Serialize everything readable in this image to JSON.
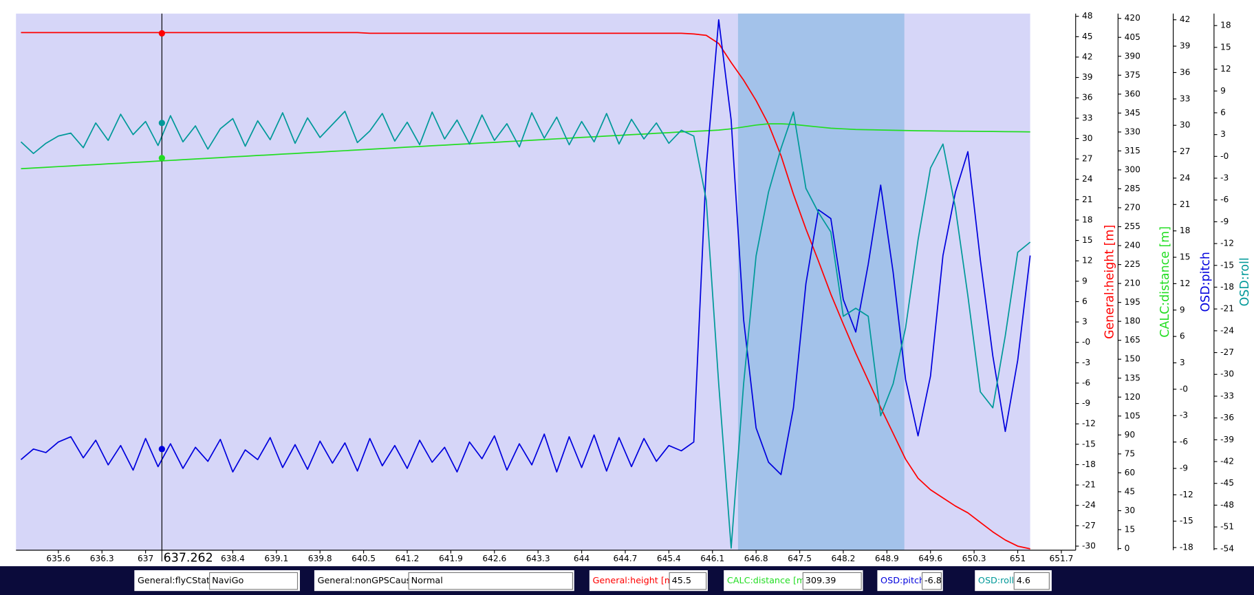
{
  "chart_data": {
    "type": "line",
    "xlim": [
      634.92,
      651.93
    ],
    "xticks": [
      635.6,
      636.3,
      637,
      638.4,
      639.1,
      639.8,
      640.5,
      641.2,
      641.9,
      642.6,
      643.3,
      644,
      644.7,
      645.4,
      646.1,
      646.8,
      647.5,
      648.2,
      648.9,
      649.6,
      650.3,
      651,
      651.7
    ],
    "cursor": 637.262,
    "highlight": [
      646.51,
      649.18
    ],
    "x": [
      635,
      635.2,
      635.4,
      635.6,
      635.8,
      636,
      636.2,
      636.4,
      636.6,
      636.8,
      637,
      637.2,
      637.4,
      637.6,
      637.8,
      638,
      638.2,
      638.4,
      638.6,
      638.8,
      639,
      639.2,
      639.4,
      639.6,
      639.8,
      640,
      640.2,
      640.4,
      640.6,
      640.8,
      641,
      641.2,
      641.4,
      641.6,
      641.8,
      642,
      642.2,
      642.4,
      642.6,
      642.8,
      643,
      643.2,
      643.4,
      643.6,
      643.8,
      644,
      644.2,
      644.4,
      644.6,
      644.8,
      645,
      645.2,
      645.4,
      645.6,
      645.8,
      646,
      646.2,
      646.4,
      646.6,
      646.8,
      647,
      647.2,
      647.4,
      647.6,
      647.8,
      648,
      648.2,
      648.4,
      648.6,
      648.8,
      649,
      649.2,
      649.4,
      649.6,
      649.8,
      650,
      650.2,
      650.4,
      650.6,
      650.8,
      651,
      651.2
    ],
    "series": [
      {
        "name": "General:height [m]",
        "color": "#ff0000",
        "cursor_value": 45.5,
        "ylim": [
          -30.6,
          48.4
        ],
        "yticks": [
          -30,
          -27,
          -24,
          -21,
          -18,
          -15,
          -12,
          -9,
          -6,
          -3,
          {
            "value": 0,
            "label": "-0"
          },
          3,
          6,
          9,
          12,
          15,
          18,
          21,
          24,
          27,
          30,
          33,
          36,
          39,
          42,
          45,
          48
        ],
        "values": [
          45.6,
          45.6,
          45.6,
          45.6,
          45.6,
          45.6,
          45.6,
          45.6,
          45.6,
          45.6,
          45.6,
          45.6,
          45.6,
          45.6,
          45.6,
          45.6,
          45.6,
          45.6,
          45.6,
          45.6,
          45.6,
          45.6,
          45.6,
          45.6,
          45.6,
          45.6,
          45.6,
          45.6,
          45.5,
          45.5,
          45.5,
          45.5,
          45.5,
          45.5,
          45.5,
          45.5,
          45.5,
          45.5,
          45.5,
          45.5,
          45.5,
          45.5,
          45.5,
          45.5,
          45.5,
          45.5,
          45.5,
          45.5,
          45.5,
          45.5,
          45.5,
          45.5,
          45.5,
          45.5,
          45.4,
          45.2,
          44.0,
          41.2,
          38.6,
          35.6,
          32.1,
          27.5,
          21.8,
          16.7,
          12.0,
          7.1,
          2.7,
          -1.6,
          -5.6,
          -9.6,
          -13.4,
          -17.2,
          -20.0,
          -21.7,
          -22.9,
          -24.1,
          -25.1,
          -26.5,
          -27.9,
          -29.1,
          -30.0,
          -30.4
        ]
      },
      {
        "name": "CALC:distance [m]",
        "color": "#22dd22",
        "cursor_value": 309.39,
        "ylim": [
          -1.3,
          423.8
        ],
        "yticks": [
          0,
          15,
          30,
          45,
          60,
          75,
          90,
          105,
          120,
          135,
          150,
          165,
          180,
          195,
          210,
          225,
          240,
          255,
          270,
          285,
          300,
          315,
          330,
          345,
          360,
          375,
          390,
          405,
          420
        ],
        "values": [
          300.9,
          301.5,
          302.0,
          302.6,
          303.1,
          303.7,
          304.2,
          304.8,
          305.3,
          305.9,
          306.4,
          307.0,
          307.5,
          308.1,
          308.6,
          309.2,
          309.7,
          310.3,
          310.8,
          311.4,
          311.9,
          312.5,
          313.0,
          313.6,
          314.1,
          314.7,
          315.2,
          315.8,
          316.3,
          316.9,
          317.4,
          318.0,
          318.5,
          319.1,
          319.6,
          320.2,
          320.7,
          321.3,
          321.8,
          322.4,
          322.9,
          323.5,
          324.0,
          324.6,
          325.1,
          325.7,
          326.2,
          326.8,
          327.3,
          327.9,
          328.4,
          329.0,
          329.5,
          330.1,
          330.5,
          331.0,
          331.5,
          332.5,
          334.0,
          335.5,
          336.5,
          336.5,
          336.0,
          335.0,
          334.0,
          333.0,
          332.5,
          332.0,
          331.8,
          331.6,
          331.4,
          331.2,
          331.0,
          330.9,
          330.8,
          330.7,
          330.6,
          330.5,
          330.4,
          330.3,
          330.2,
          330.1
        ]
      },
      {
        "name": "OSD:pitch",
        "color": "#0000dd",
        "cursor_value": -6.8,
        "ylim": [
          -18.3,
          42.7
        ],
        "yticks": [
          -18,
          -15,
          -12,
          -9,
          -6,
          -3,
          {
            "value": 0,
            "label": "-0"
          },
          3,
          6,
          9,
          12,
          15,
          18,
          21,
          24,
          27,
          30,
          33,
          36,
          39,
          42
        ],
        "values": [
          -8.0,
          -6.8,
          -7.2,
          -6.0,
          -5.4,
          -7.8,
          -5.8,
          -8.6,
          -6.4,
          -9.2,
          -5.6,
          -8.8,
          -6.2,
          -9.0,
          -6.6,
          -8.2,
          -5.7,
          -9.4,
          -6.9,
          -8.0,
          -5.5,
          -8.9,
          -6.3,
          -9.1,
          -5.9,
          -8.4,
          -6.1,
          -9.3,
          -5.6,
          -8.7,
          -6.4,
          -9.0,
          -5.8,
          -8.3,
          -6.6,
          -9.4,
          -6.0,
          -7.9,
          -5.3,
          -9.2,
          -6.2,
          -8.6,
          -5.1,
          -9.4,
          -5.4,
          -8.9,
          -5.2,
          -9.3,
          -5.5,
          -8.8,
          -5.6,
          -8.2,
          -6.4,
          -7.0,
          -6.0,
          25.2,
          42.0,
          30.6,
          7.9,
          -4.4,
          -8.3,
          -9.7,
          -2.1,
          12.0,
          20.4,
          19.4,
          10.2,
          6.5,
          14.2,
          23.2,
          13.3,
          1.1,
          -5.3,
          1.5,
          15.2,
          22.4,
          27.0,
          14.7,
          3.8,
          -4.8,
          3.3,
          15.2
        ]
      },
      {
        "name": "OSD:roll",
        "color": "#009999",
        "cursor_value": 4.6,
        "ylim": [
          -54.2,
          19.65
        ],
        "yticks": [
          -54,
          -51,
          -48,
          -45,
          -42,
          -39,
          -36,
          -33,
          -30,
          -27,
          -24,
          -21,
          -18,
          -15,
          -12,
          -9,
          -6,
          -3,
          {
            "value": 0,
            "label": "-0"
          },
          3,
          6,
          9,
          12,
          15,
          18
        ],
        "values": [
          2.0,
          0.4,
          1.8,
          2.8,
          3.2,
          1.2,
          4.6,
          2.2,
          5.8,
          3.0,
          4.8,
          1.5,
          5.6,
          2.0,
          4.2,
          1.0,
          3.8,
          5.2,
          1.4,
          4.9,
          2.3,
          6.0,
          1.8,
          5.3,
          2.6,
          4.4,
          6.2,
          1.9,
          3.5,
          5.9,
          2.1,
          4.7,
          1.6,
          6.1,
          2.4,
          5.0,
          1.7,
          5.7,
          2.2,
          4.5,
          1.3,
          6.0,
          2.5,
          5.4,
          1.6,
          4.8,
          2.0,
          5.9,
          1.7,
          5.1,
          2.4,
          4.6,
          1.8,
          3.6,
          2.8,
          -6.0,
          -31.3,
          -53.9,
          -31.3,
          -13.7,
          -4.9,
          1.1,
          6.1,
          -4.4,
          -7.7,
          -10.4,
          -22.0,
          -20.9,
          -22.0,
          -35.7,
          -31.3,
          -23.6,
          -11.5,
          -1.6,
          1.7,
          -7.1,
          -19.2,
          -32.4,
          -34.6,
          -24.7,
          -13.2,
          -11.8
        ]
      }
    ],
    "status_fields": [
      {
        "label": "General:flyCState",
        "value": "NaviGo"
      },
      {
        "label": "General:nonGPSCause",
        "value": "Normal"
      }
    ]
  }
}
